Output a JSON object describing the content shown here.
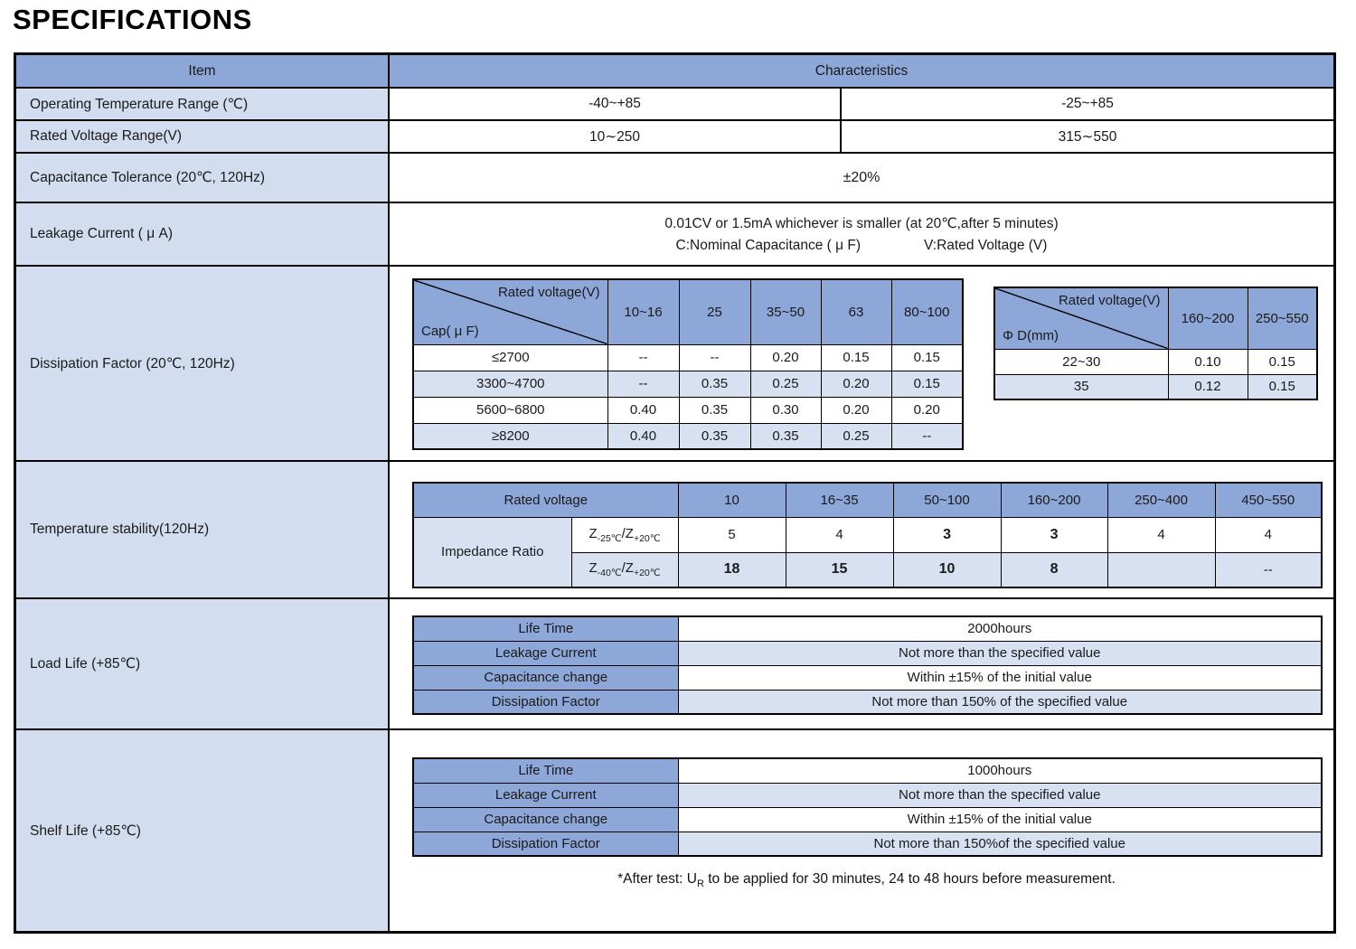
{
  "title": "SPECIFICATIONS",
  "colors": {
    "header_blue": "#8da7d8",
    "item_blue": "#d2deef",
    "stripe_blue": "#d7e1f1",
    "border": "#000000"
  },
  "table": {
    "header": {
      "item": "Item",
      "characteristics": "Characteristics"
    },
    "row_operating": {
      "label": "Operating Temperature Range (℃)",
      "left": "-40~+85",
      "right": "-25~+85"
    },
    "row_voltage": {
      "label": "Rated Voltage Range(V)",
      "left": "10∼250",
      "right": "315∼550"
    },
    "row_tolerance": {
      "label": "Capacitance Tolerance (20℃, 120Hz)",
      "value": "±20%"
    },
    "row_leakage": {
      "label": "Leakage Current ( μ A)",
      "line1": "0.01CV or 1.5mA whichever is smaller  (at 20℃,after 5 minutes)",
      "line2_left": "C:Nominal Capacitance ( μ F)",
      "line2_right": "V:Rated Voltage (V)"
    },
    "row_dissipation": {
      "label": "Dissipation Factor (20℃, 120Hz)"
    },
    "row_temperature": {
      "label": "Temperature stability(120Hz)"
    },
    "row_loadlife": {
      "label": "Load Life (+85℃)"
    },
    "row_shelflife": {
      "label": "Shelf Life (+85℃)"
    }
  },
  "dissipation_by_cap": {
    "diag_top": "Rated voltage(V)",
    "diag_bottom": "Cap( μ F)",
    "columns": [
      "10~16",
      "25",
      "35~50",
      "63",
      "80~100"
    ],
    "rows": [
      {
        "label": "≤2700",
        "values": [
          "--",
          "--",
          "0.20",
          "0.15",
          "0.15"
        ]
      },
      {
        "label": "3300~4700",
        "values": [
          "--",
          "0.35",
          "0.25",
          "0.20",
          "0.15"
        ]
      },
      {
        "label": "5600~6800",
        "values": [
          "0.40",
          "0.35",
          "0.30",
          "0.20",
          "0.20"
        ]
      },
      {
        "label": "≥8200",
        "values": [
          "0.40",
          "0.35",
          "0.35",
          "0.25",
          "--"
        ]
      }
    ]
  },
  "dissipation_by_diameter": {
    "diag_top": "Rated voltage(V)",
    "diag_bottom": "Φ D(mm)",
    "columns": [
      "160~200",
      "250~550"
    ],
    "rows": [
      {
        "label": "22~30",
        "values": [
          "0.10",
          "0.15"
        ]
      },
      {
        "label": "35",
        "values": [
          "0.12",
          "0.15"
        ]
      }
    ]
  },
  "temperature_stability": {
    "header_label": "Rated voltage",
    "columns": [
      "10",
      "16~35",
      "50~100",
      "160~200",
      "250~400",
      "450~550"
    ],
    "group_label": "Impedance Ratio",
    "rows": [
      {
        "z_pre": "Z",
        "z_sub1": "-25℃",
        "z_mid": "/Z",
        "z_sub2": "+20℃",
        "values": [
          "5",
          "4",
          "3",
          "3",
          "4",
          "4"
        ],
        "bold": [
          false,
          false,
          true,
          true,
          false,
          false
        ]
      },
      {
        "z_pre": "Z",
        "z_sub1": "-40℃",
        "z_mid": "/Z",
        "z_sub2": "+20℃",
        "values": [
          "18",
          "15",
          "10",
          "8",
          "",
          "--"
        ],
        "bold": [
          true,
          true,
          true,
          true,
          false,
          false
        ]
      }
    ]
  },
  "load_life": {
    "rows": [
      {
        "label": "Life Time",
        "value": "2000hours"
      },
      {
        "label": "Leakage Current",
        "value": "Not more than the specified value"
      },
      {
        "label": "Capacitance change",
        "value": "Within ±15% of the initial value"
      },
      {
        "label": "Dissipation Factor",
        "value": "Not more than 150% of the specified value"
      }
    ]
  },
  "shelf_life": {
    "rows": [
      {
        "label": "Life Time",
        "value": "1000hours"
      },
      {
        "label": "Leakage Current",
        "value": "Not more than the specified value"
      },
      {
        "label": "Capacitance change",
        "value": "Within ±15% of the initial value"
      },
      {
        "label": "Dissipation Factor",
        "value": "Not more than 150%of the specified value"
      }
    ],
    "footnote": {
      "pre": "*After test: U",
      "sub": "R",
      "post": " to be applied for 30 minutes, 24 to 48 hours before measurement."
    }
  }
}
